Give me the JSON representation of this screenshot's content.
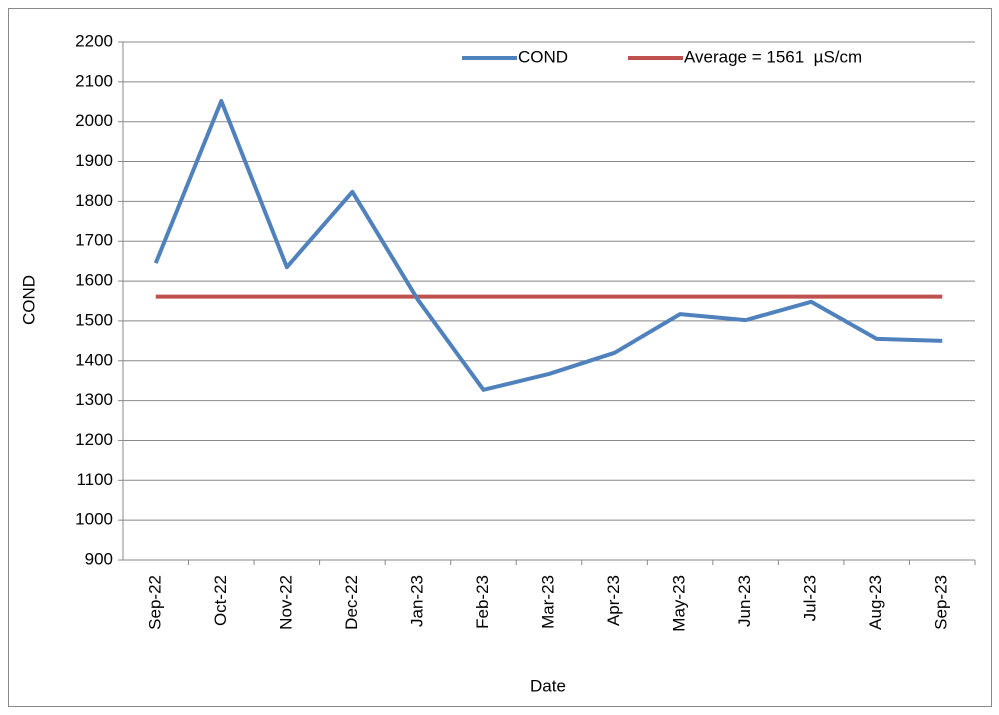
{
  "chart_data": {
    "type": "line",
    "x_label": "Date",
    "y_label": "COND",
    "categories": [
      "Sep-22",
      "Oct-22",
      "Nov-22",
      "Dec-22",
      "Jan-23",
      "Feb-23",
      "Mar-23",
      "Apr-23",
      "May-23",
      "Jun-23",
      "Jul-23",
      "Aug-23",
      "Sep-23"
    ],
    "series": [
      {
        "name": "COND",
        "color": "#4f81bd",
        "values": [
          1645,
          2052,
          1635,
          1824,
          1553,
          1327,
          1367,
          1420,
          1517,
          1502,
          1548,
          1455,
          1450
        ]
      },
      {
        "name": "Average = 1561  µS/cm",
        "color": "#c0504d",
        "values": [
          1561,
          1561,
          1561,
          1561,
          1561,
          1561,
          1561,
          1561,
          1561,
          1561,
          1561,
          1561,
          1561
        ]
      }
    ],
    "ylim": [
      900,
      2200
    ],
    "yticks": [
      900,
      1000,
      1100,
      1200,
      1300,
      1400,
      1500,
      1600,
      1700,
      1800,
      1900,
      2000,
      2100,
      2200
    ],
    "grid": true
  }
}
